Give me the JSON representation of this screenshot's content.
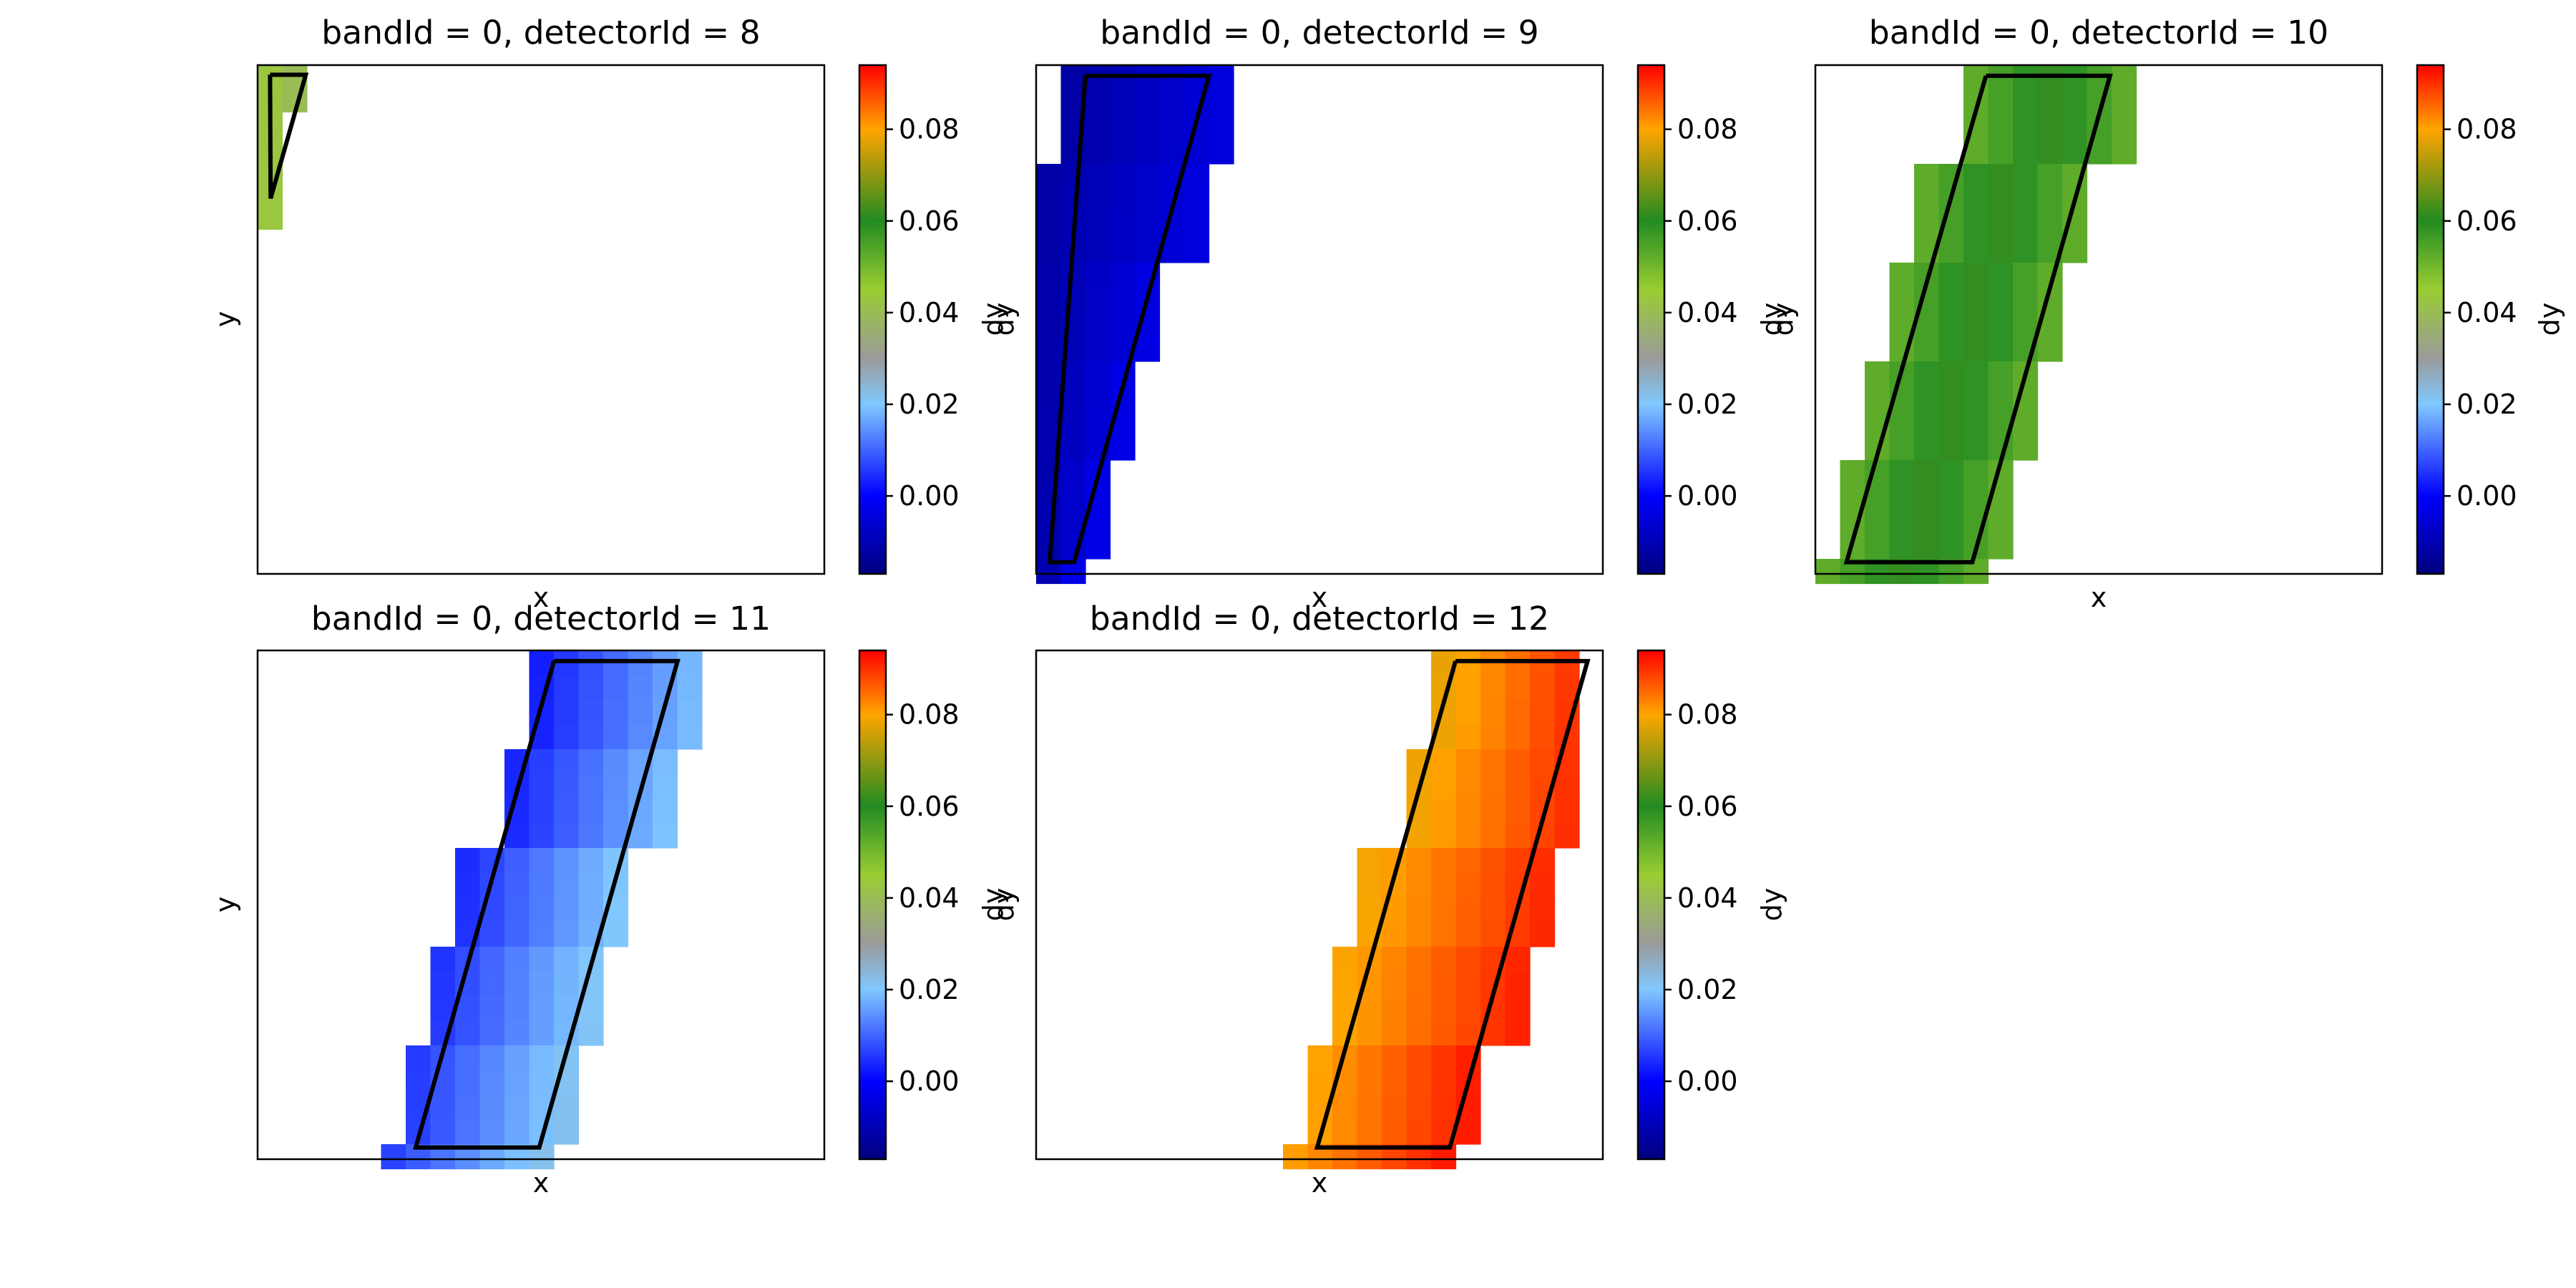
{
  "chart_data": [
    {
      "type": "heatmap",
      "title": "bandId = 0, detectorId = 8",
      "xlabel": "x",
      "ylabel": "y",
      "colorbar": {
        "label": "dy",
        "range": [
          -0.017,
          0.094
        ],
        "ticks": [
          "0.00",
          "0.02",
          "0.04",
          "0.06",
          "0.08"
        ],
        "tick_values": [
          0.0,
          0.02,
          0.04,
          0.06,
          0.08
        ]
      },
      "value": 0.043,
      "footprint_outline": "triangle at top-left corner"
    },
    {
      "type": "heatmap",
      "title": "bandId = 0, detectorId = 9",
      "xlabel": "x",
      "ylabel": "dy",
      "colorbar": {
        "label": "dy",
        "range": [
          -0.017,
          0.094
        ],
        "ticks": [
          "0.00",
          "0.02",
          "0.04",
          "0.06",
          "0.08"
        ],
        "tick_values": [
          0.0,
          0.02,
          0.04,
          0.06,
          0.08
        ]
      },
      "value_range": [
        -0.012,
        -0.003
      ],
      "footprint_outline": "slanted parallelogram"
    },
    {
      "type": "heatmap",
      "title": "bandId = 0, detectorId = 10",
      "xlabel": "x",
      "ylabel": "dy",
      "colorbar": {
        "label": "dy",
        "range": [
          -0.017,
          0.094
        ],
        "ticks": [
          "0.00",
          "0.02",
          "0.04",
          "0.06",
          "0.08"
        ],
        "tick_values": [
          0.0,
          0.02,
          0.04,
          0.06,
          0.08
        ]
      },
      "value_range": [
        0.052,
        0.062
      ],
      "footprint_outline": "slanted parallelogram"
    },
    {
      "type": "heatmap",
      "title": "bandId = 0, detectorId = 11",
      "xlabel": "x",
      "ylabel": "y",
      "colorbar": {
        "label": "dy",
        "range": [
          -0.017,
          0.094
        ],
        "ticks": [
          "0.00",
          "0.02",
          "0.04",
          "0.06",
          "0.08"
        ],
        "tick_values": [
          0.0,
          0.02,
          0.04,
          0.06,
          0.08
        ]
      },
      "value_range": [
        0.003,
        0.022
      ],
      "footprint_outline": "slanted parallelogram"
    },
    {
      "type": "heatmap",
      "title": "bandId = 0, detectorId = 12",
      "xlabel": "x",
      "ylabel": "dy",
      "colorbar": {
        "label": "dy",
        "range": [
          -0.017,
          0.094
        ],
        "ticks": [
          "0.00",
          "0.02",
          "0.04",
          "0.06",
          "0.08"
        ],
        "tick_values": [
          0.0,
          0.02,
          0.04,
          0.06,
          0.08
        ]
      },
      "value_range": [
        0.078,
        0.092
      ],
      "footprint_outline": "slanted parallelogram"
    }
  ],
  "colormap_stops": [
    {
      "v": -0.017,
      "color": "#00007f"
    },
    {
      "v": 0.0,
      "color": "#0000ff"
    },
    {
      "v": 0.02,
      "color": "#80c8ff"
    },
    {
      "v": 0.03,
      "color": "#9a9a9a"
    },
    {
      "v": 0.045,
      "color": "#9acd32"
    },
    {
      "v": 0.06,
      "color": "#228b22"
    },
    {
      "v": 0.08,
      "color": "#ffa500"
    },
    {
      "v": 0.094,
      "color": "#ff0000"
    }
  ]
}
